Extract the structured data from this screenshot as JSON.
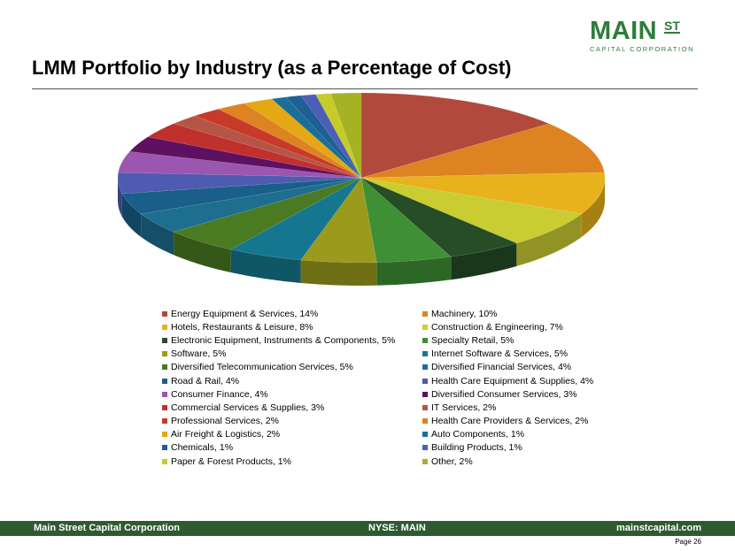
{
  "logo": {
    "main": "MAIN",
    "superscript": "ST",
    "sub": "CAPITAL CORPORATION"
  },
  "title": "LMM Portfolio by Industry (as a Percentage of Cost)",
  "chart_data": {
    "type": "pie",
    "title": "LMM Portfolio by Industry (as a Percentage of Cost)",
    "categories": [
      "Energy Equipment & Services",
      "Machinery",
      "Hotels, Restaurants & Leisure",
      "Construction & Engineering",
      "Electronic Equipment, Instruments & Components",
      "Specialty Retail",
      "Software",
      "Internet Software & Services",
      "Diversified Telecommunication Services",
      "Diversified Financial Services",
      "Road & Rail",
      "Health Care Equipment & Supplies",
      "Consumer Finance",
      "Diversified Consumer Services",
      "Commercial Services & Supplies",
      "IT Services",
      "Professional Services",
      "Health Care Providers & Services",
      "Air Freight & Logistics",
      "Auto Components",
      "Chemicals",
      "Building Products",
      "Paper & Forest Products",
      "Other"
    ],
    "values": [
      14,
      10,
      8,
      7,
      5,
      5,
      5,
      5,
      5,
      4,
      4,
      4,
      4,
      3,
      3,
      2,
      2,
      2,
      2,
      1,
      1,
      1,
      1,
      2
    ],
    "legend_labels": [
      "Energy Equipment & Services, 14%",
      "Machinery, 10%",
      "Hotels, Restaurants & Leisure, 8%",
      "Construction & Engineering, 7%",
      "Electronic Equipment, Instruments & Components, 5%",
      "Specialty Retail, 5%",
      "Software, 5%",
      "Internet Software & Services, 5%",
      "Diversified Telecommunication Services, 5%",
      "Diversified Financial Services, 4%",
      "Road & Rail, 4%",
      "Health Care Equipment & Supplies, 4%",
      "Consumer Finance, 4%",
      "Diversified Consumer Services, 3%",
      "Commercial Services & Supplies, 3%",
      "IT Services, 2%",
      "Professional Services, 2%",
      "Health Care Providers & Services, 2%",
      "Air Freight & Logistics, 2%",
      "Auto Components, 1%",
      "Chemicals, 1%",
      "Building Products, 1%",
      "Paper & Forest Products, 1%",
      "Other, 2%"
    ],
    "colors": [
      "#b14a3c",
      "#dd8322",
      "#e8b21c",
      "#c9cd32",
      "#264d26",
      "#3f8f35",
      "#9a9a1d",
      "#15778f",
      "#4a7a22",
      "#1d6e8f",
      "#1a5e8a",
      "#4e5bb0",
      "#9b56b0",
      "#5e1160",
      "#c0302d",
      "#b65545",
      "#c73a2a",
      "#dd8322",
      "#e4a814",
      "#1a6f98",
      "#1f5f95",
      "#4b5fb5",
      "#c6cb2a",
      "#a6b224"
    ],
    "legend_position": "bottom",
    "style": "3d"
  },
  "footer": {
    "left": "Main Street Capital Corporation",
    "center": "NYSE: MAIN",
    "right": "mainstcapital.com"
  },
  "page": "Page  26"
}
